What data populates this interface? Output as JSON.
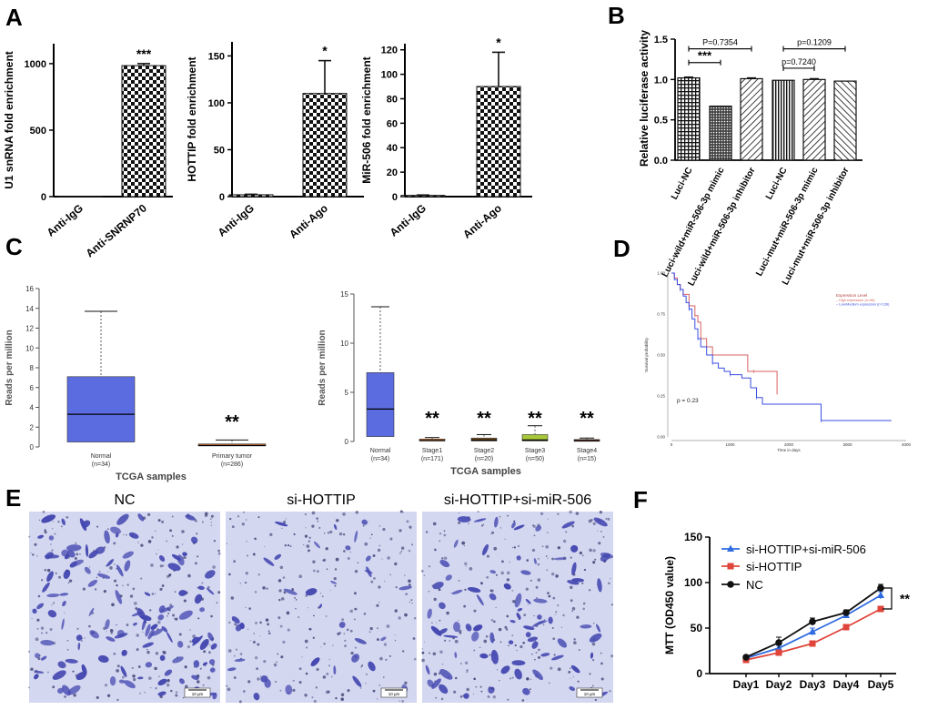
{
  "figure": {
    "panel_letters": [
      "A",
      "B",
      "C",
      "D",
      "E",
      "F"
    ]
  },
  "colors": {
    "box_blue": "#5b6ce0",
    "orange": "#e07a2e",
    "brown": "#8b5a2b",
    "lime": "#a8c83c",
    "red_small": "#d9482b",
    "km_red": "#d96060",
    "km_blue": "#3a4ee0",
    "micro_stain": "#4448b0",
    "micro_bg": "#d4d7f0",
    "mtt_blue": "#2f6be0",
    "mtt_red": "#e0443a",
    "mtt_black": "#111111"
  },
  "chart_data": [
    {
      "id": "A1",
      "type": "bar",
      "ylabel": "U1 snRNA fold enrichment",
      "categories": [
        "Anti-IgG",
        "Anti-SNRNP70"
      ],
      "values": [
        2,
        985
      ],
      "errors": [
        0,
        15
      ],
      "ylim": [
        0,
        1150
      ],
      "yticks": [
        0,
        500,
        1000
      ],
      "significance": [
        {
          "label": "***",
          "bar": 1
        }
      ]
    },
    {
      "id": "A2",
      "type": "bar",
      "ylabel": "HOTTIP fold enrichment",
      "categories": [
        "Anti-IgG",
        "Anti-Ago"
      ],
      "values": [
        2,
        110
      ],
      "errors": [
        0.5,
        35
      ],
      "ylim": [
        0,
        165
      ],
      "yticks": [
        0,
        50,
        100,
        150
      ],
      "significance": [
        {
          "label": "*",
          "bar": 1
        }
      ]
    },
    {
      "id": "A3",
      "type": "bar",
      "ylabel": "MiR-506 fold enrichment",
      "categories": [
        "Anti-IgG",
        "Anti-Ago"
      ],
      "values": [
        1,
        90
      ],
      "errors": [
        0.3,
        28
      ],
      "ylim": [
        0,
        125
      ],
      "yticks": [
        0,
        20,
        40,
        60,
        80,
        100,
        120
      ],
      "significance": [
        {
          "label": "*",
          "bar": 1
        }
      ]
    },
    {
      "id": "B",
      "type": "bar",
      "ylabel": "Relative luciferase activity",
      "categories": [
        "Luci-NC",
        "Luci-wild+miR-506-3p mimic",
        "Luci-wild+miR-506-3p inhibitor",
        "Luci-NC",
        "Luci-mut+miR-506-3p mimic",
        "Luci-mut+miR-506-3p inhibitor"
      ],
      "values": [
        1.02,
        0.67,
        1.01,
        0.99,
        1.0,
        0.98
      ],
      "errors": [
        0.01,
        0.0,
        0.01,
        0.0,
        0.01,
        0.0
      ],
      "ylim": [
        0,
        1.5
      ],
      "yticks": [
        "0.0",
        "0.5",
        "1.0",
        "1.5"
      ],
      "comparisons": [
        {
          "from": 0,
          "to": 2,
          "label": "P=0.7354",
          "y": 1.38
        },
        {
          "from": 0,
          "to": 1,
          "label": "***",
          "y": 1.21
        },
        {
          "from": 3,
          "to": 5,
          "label": "p=0.1209",
          "y": 1.38
        },
        {
          "from": 3,
          "to": 4,
          "label": "p=0.7240",
          "y": 1.14
        }
      ]
    },
    {
      "id": "C1",
      "type": "box",
      "ylabel": "Reads per million",
      "xlabel": "TCGA samples",
      "ylim": [
        0,
        16
      ],
      "yticks": [
        0,
        2,
        4,
        6,
        8,
        10,
        12,
        14,
        16
      ],
      "groups": [
        {
          "name": "Normal",
          "n": "(n=34)",
          "min": 0.5,
          "q1": 0.5,
          "median": 3.3,
          "q3": 7.1,
          "max": 13.7,
          "sig": ""
        },
        {
          "name": "Primary tumor",
          "n": "(n=286)",
          "min": 0,
          "q1": 0.1,
          "median": 0.15,
          "q3": 0.3,
          "max": 0.7,
          "sig": "**"
        }
      ]
    },
    {
      "id": "C2",
      "type": "box",
      "ylabel": "Reads per million",
      "xlabel": "TCGA samples",
      "ylim": [
        0,
        15
      ],
      "yticks": [
        0,
        5,
        10,
        15
      ],
      "groups": [
        {
          "name": "Normal",
          "n": "(n=34)",
          "min": 0.5,
          "q1": 0.5,
          "median": 3.3,
          "q3": 7.0,
          "max": 13.7,
          "sig": ""
        },
        {
          "name": "Stage1",
          "n": "(n=171)",
          "min": 0,
          "q1": 0.05,
          "median": 0.1,
          "q3": 0.25,
          "max": 0.4,
          "sig": "**"
        },
        {
          "name": "Stage2",
          "n": "(n=20)",
          "min": 0,
          "q1": 0.05,
          "median": 0.15,
          "q3": 0.35,
          "max": 0.7,
          "sig": "**"
        },
        {
          "name": "Stage3",
          "n": "(n=50)",
          "min": 0,
          "q1": 0.05,
          "median": 0.15,
          "q3": 0.7,
          "max": 1.6,
          "sig": "**"
        },
        {
          "name": "Stage4",
          "n": "(n=15)",
          "min": 0,
          "q1": 0.05,
          "median": 0.1,
          "q3": 0.2,
          "max": 0.35,
          "sig": "**"
        }
      ]
    },
    {
      "id": "D",
      "type": "line",
      "xlabel": "Time in days",
      "ylabel": "Survival probability",
      "xlim": [
        0,
        4000
      ],
      "xticks": [
        0,
        1000,
        2000,
        3000,
        4000
      ],
      "ylim": [
        0,
        1
      ],
      "yticks": [
        "0.00",
        "0.25",
        "0.50",
        "0.75",
        "1.00"
      ],
      "legend_title": "Expression Level",
      "pvalue": "p = 0.23",
      "series": [
        {
          "name": "High expression (n=46)",
          "legend": "– High expression (n=46)",
          "points": [
            [
              0,
              1.0
            ],
            [
              50,
              0.97
            ],
            [
              100,
              0.93
            ],
            [
              150,
              0.9
            ],
            [
              200,
              0.87
            ],
            [
              300,
              0.8
            ],
            [
              400,
              0.74
            ],
            [
              450,
              0.7
            ],
            [
              500,
              0.6
            ],
            [
              600,
              0.55
            ],
            [
              700,
              0.5
            ],
            [
              1300,
              0.4
            ],
            [
              1400,
              0.4
            ],
            [
              1800,
              0.26
            ]
          ]
        },
        {
          "name": "Low/Medium expression (n=136)",
          "legend": "– Low/Medium expression (n=136)",
          "points": [
            [
              0,
              1.0
            ],
            [
              50,
              0.96
            ],
            [
              100,
              0.93
            ],
            [
              150,
              0.9
            ],
            [
              200,
              0.86
            ],
            [
              250,
              0.82
            ],
            [
              300,
              0.78
            ],
            [
              350,
              0.72
            ],
            [
              400,
              0.66
            ],
            [
              450,
              0.6
            ],
            [
              500,
              0.55
            ],
            [
              600,
              0.5
            ],
            [
              700,
              0.45
            ],
            [
              800,
              0.42
            ],
            [
              900,
              0.4
            ],
            [
              1000,
              0.38
            ],
            [
              1200,
              0.36
            ],
            [
              1350,
              0.3
            ],
            [
              1450,
              0.24
            ],
            [
              1550,
              0.2
            ],
            [
              2500,
              0.2
            ],
            [
              2550,
              0.1
            ],
            [
              3750,
              0.1
            ]
          ]
        }
      ]
    },
    {
      "id": "F",
      "type": "line",
      "ylabel": "MTT (OD450 value)",
      "categories": [
        "Day1",
        "Day2",
        "Day3",
        "Day4",
        "Day5"
      ],
      "ylim": [
        0,
        150
      ],
      "yticks": [
        0,
        50,
        100,
        150
      ],
      "significance": "**",
      "series": [
        {
          "name": "si-HOTTIP+si-miR-506",
          "values": [
            17,
            28,
            46,
            64,
            86
          ],
          "errors": [
            2,
            3,
            4,
            3,
            4
          ]
        },
        {
          "name": "si-HOTTIP",
          "values": [
            15,
            23,
            33,
            51,
            71
          ],
          "errors": [
            2,
            3,
            3,
            2,
            3
          ]
        },
        {
          "name": "NC",
          "values": [
            18,
            34,
            57,
            67,
            94
          ],
          "errors": [
            2,
            6,
            4,
            3,
            4
          ]
        }
      ]
    }
  ],
  "panel_e": {
    "titles": [
      "NC",
      "si-HOTTIP",
      "si-HOTTIP+si-miR-506"
    ],
    "scale_bar": "10 µm"
  }
}
